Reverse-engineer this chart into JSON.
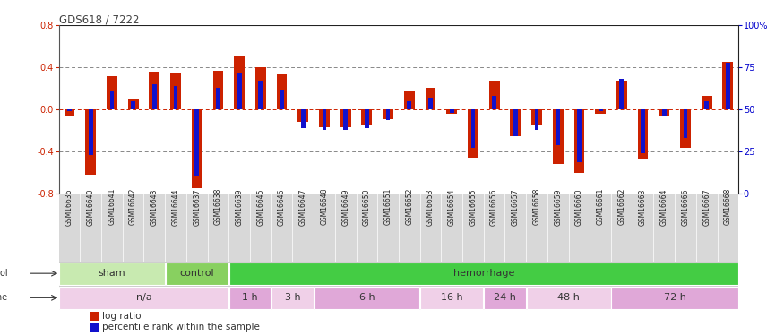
{
  "title": "GDS618 / 7222",
  "samples": [
    "GSM16636",
    "GSM16640",
    "GSM16641",
    "GSM16642",
    "GSM16643",
    "GSM16644",
    "GSM16637",
    "GSM16638",
    "GSM16639",
    "GSM16645",
    "GSM16646",
    "GSM16647",
    "GSM16648",
    "GSM16649",
    "GSM16650",
    "GSM16651",
    "GSM16652",
    "GSM16653",
    "GSM16654",
    "GSM16655",
    "GSM16656",
    "GSM16657",
    "GSM16658",
    "GSM16659",
    "GSM16660",
    "GSM16661",
    "GSM16662",
    "GSM16663",
    "GSM16664",
    "GSM16666",
    "GSM16667",
    "GSM16668"
  ],
  "log_ratio": [
    -0.06,
    -0.62,
    0.32,
    0.1,
    0.36,
    0.35,
    -0.75,
    0.37,
    0.5,
    0.4,
    0.33,
    -0.12,
    -0.17,
    -0.17,
    -0.15,
    -0.09,
    0.17,
    0.21,
    -0.04,
    -0.46,
    0.27,
    -0.25,
    -0.15,
    -0.52,
    -0.6,
    -0.04,
    0.27,
    -0.47,
    -0.06,
    -0.36,
    0.13,
    0.45
  ],
  "percentile": [
    49,
    23,
    61,
    55,
    65,
    64,
    11,
    63,
    72,
    67,
    62,
    39,
    38,
    38,
    39,
    44,
    55,
    57,
    48,
    27,
    58,
    34,
    38,
    29,
    19,
    49,
    68,
    24,
    46,
    33,
    55,
    78
  ],
  "protocol_groups": [
    {
      "label": "sham",
      "start": 0,
      "end": 5,
      "color": "#c8eab0"
    },
    {
      "label": "control",
      "start": 5,
      "end": 8,
      "color": "#88d060"
    },
    {
      "label": "hemorrhage",
      "start": 8,
      "end": 32,
      "color": "#44cc44"
    }
  ],
  "time_groups": [
    {
      "label": "n/a",
      "start": 0,
      "end": 8,
      "color": "#f0d0e8"
    },
    {
      "label": "1 h",
      "start": 8,
      "end": 10,
      "color": "#e0a8d8"
    },
    {
      "label": "3 h",
      "start": 10,
      "end": 12,
      "color": "#f0d0e8"
    },
    {
      "label": "6 h",
      "start": 12,
      "end": 17,
      "color": "#e0a8d8"
    },
    {
      "label": "16 h",
      "start": 17,
      "end": 20,
      "color": "#f0d0e8"
    },
    {
      "label": "24 h",
      "start": 20,
      "end": 22,
      "color": "#e0a8d8"
    },
    {
      "label": "48 h",
      "start": 22,
      "end": 26,
      "color": "#f0d0e8"
    },
    {
      "label": "72 h",
      "start": 26,
      "end": 32,
      "color": "#e0a8d8"
    }
  ],
  "ylim": [
    -0.8,
    0.8
  ],
  "yticks_left": [
    -0.8,
    -0.4,
    0.0,
    0.4,
    0.8
  ],
  "yticks_right_pct": [
    0,
    25,
    50,
    75,
    100
  ],
  "right_labels": [
    "0",
    "25",
    "50",
    "75",
    "100%"
  ],
  "bar_color": "#cc2200",
  "percentile_color": "#1111cc",
  "background_color": "#ffffff",
  "xlabel_bg": "#d8d8d8",
  "proto_bg": "#cccccc"
}
